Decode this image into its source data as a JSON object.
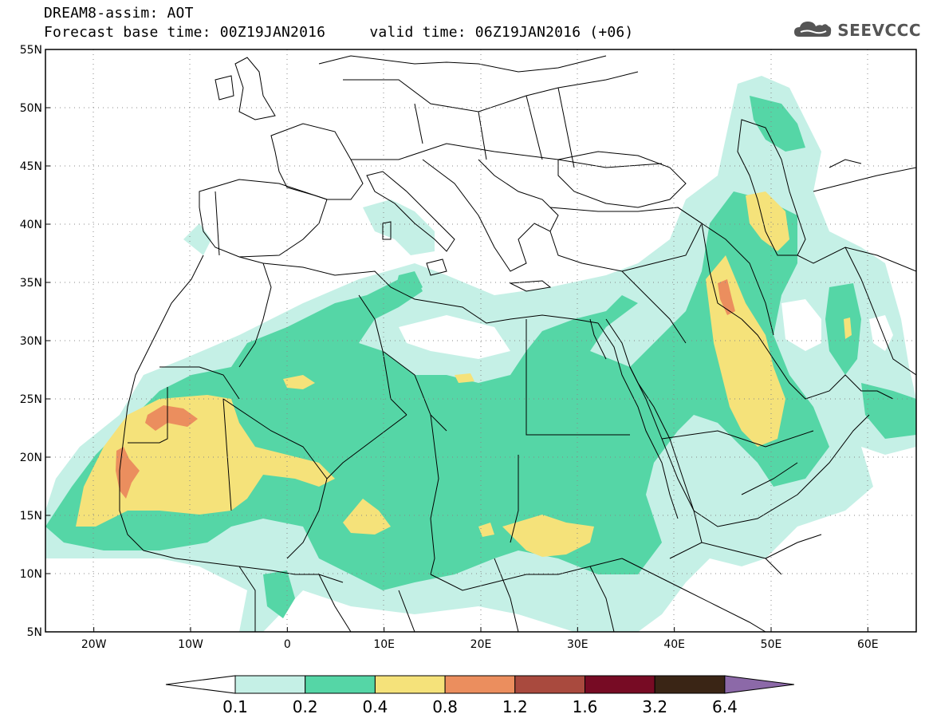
{
  "header": {
    "title_line1": "DREAM8-assim: AOT",
    "title_line2": "Forecast base time: 00Z19JAN2016     valid time: 06Z19JAN2016 (+06)",
    "logo_text": "SEEVCCC"
  },
  "map": {
    "lon_range": [
      -25,
      65
    ],
    "lat_range": [
      5,
      55
    ],
    "lat_labels": [
      "55N",
      "50N",
      "45N",
      "40N",
      "35N",
      "30N",
      "25N",
      "20N",
      "15N",
      "10N",
      "5N"
    ],
    "lat_values": [
      55,
      50,
      45,
      40,
      35,
      30,
      25,
      20,
      15,
      10,
      5
    ],
    "lon_labels": [
      "20W",
      "10W",
      "0",
      "10E",
      "20E",
      "30E",
      "40E",
      "50E",
      "60E"
    ],
    "lon_values": [
      -20,
      -10,
      0,
      10,
      20,
      30,
      40,
      50,
      60
    ]
  },
  "colorbar": {
    "levels": [
      "0.1",
      "0.2",
      "0.4",
      "0.8",
      "1.2",
      "1.6",
      "3.2",
      "6.4"
    ],
    "colors": [
      "#c5f0e6",
      "#55d6a6",
      "#f5e27a",
      "#eb8e5e",
      "#a94a3e",
      "#770b24",
      "#3a2515"
    ],
    "low_extend_color": "#ffffff",
    "high_extend_color": "#8c69a8"
  },
  "colors": {
    "aot_01": "#c5f0e6",
    "aot_02": "#55d6a6",
    "aot_04": "#f5e27a",
    "aot_08": "#eb8e5e"
  }
}
